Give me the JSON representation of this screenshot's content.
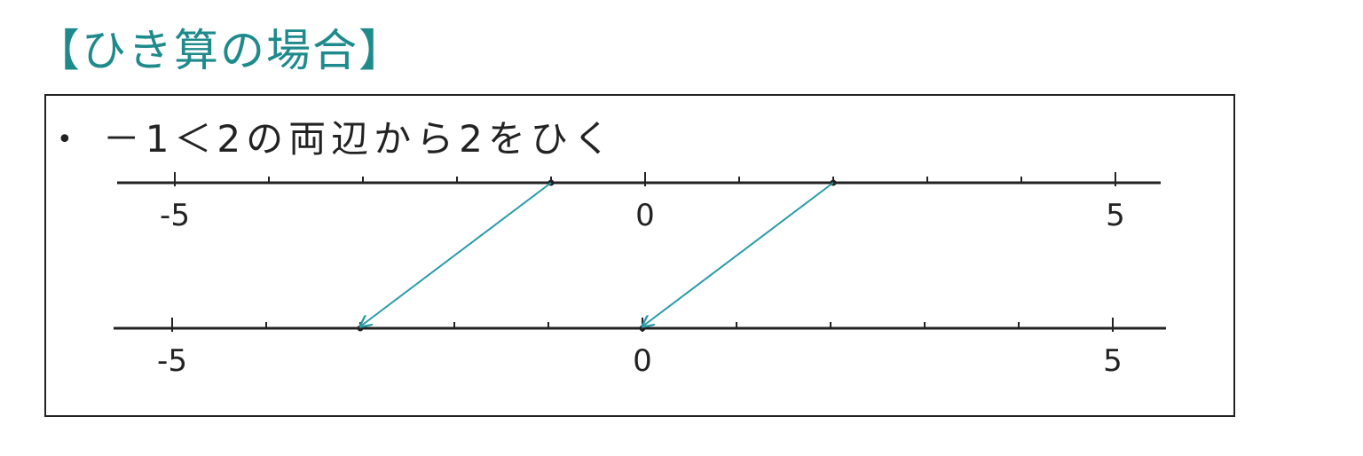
{
  "heading": "【ひき算の場合】",
  "statement": {
    "bullet": "•",
    "text": "－1＜2の両辺から2をひく"
  },
  "number_lines": [
    {
      "tick_labels": [
        "-5",
        "0",
        "5"
      ],
      "points": [
        -1,
        2
      ]
    },
    {
      "tick_labels": [
        "-5",
        "0",
        "5"
      ],
      "points": [
        -3,
        0
      ]
    }
  ],
  "arrows": [
    {
      "from": -1,
      "to": -3
    },
    {
      "from": 2,
      "to": 0
    }
  ],
  "colors": {
    "heading": "#1f8a8c",
    "arrow": "#2a9aa8",
    "ink": "#222222"
  }
}
